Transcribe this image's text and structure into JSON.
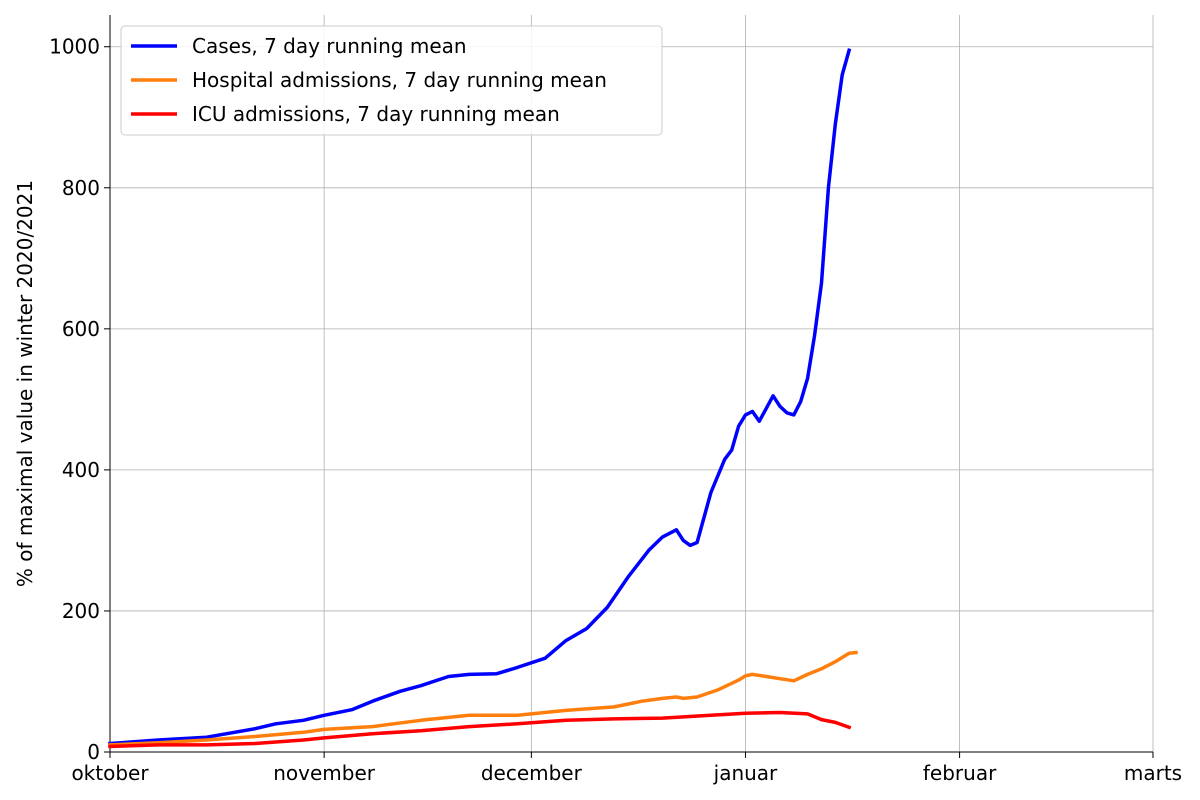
{
  "chart_data": {
    "type": "line",
    "title": "",
    "xlabel": "",
    "ylabel": "% of maximal value in winter 2020/2021",
    "x_unit": "date",
    "xlim": [
      "2021-10-01",
      "2022-03-01"
    ],
    "ylim": [
      0,
      1045
    ],
    "x_ticks": [
      {
        "date": "2021-10-01",
        "label": "oktober"
      },
      {
        "date": "2021-11-01",
        "label": "november"
      },
      {
        "date": "2021-12-01",
        "label": "december"
      },
      {
        "date": "2022-01-01",
        "label": "januar"
      },
      {
        "date": "2022-02-01",
        "label": "februar"
      },
      {
        "date": "2022-03-01",
        "label": "marts"
      }
    ],
    "y_ticks": [
      0,
      200,
      400,
      600,
      800,
      1000
    ],
    "grid": true,
    "legend": "top-left",
    "series": [
      {
        "name": "Cases, 7 day running mean",
        "color": "#0000ff",
        "points": [
          [
            "2021-10-01",
            12
          ],
          [
            "2021-10-08",
            17
          ],
          [
            "2021-10-15",
            21
          ],
          [
            "2021-10-22",
            33
          ],
          [
            "2021-10-25",
            40
          ],
          [
            "2021-10-29",
            45
          ],
          [
            "2021-11-01",
            52
          ],
          [
            "2021-11-05",
            60
          ],
          [
            "2021-11-08",
            72
          ],
          [
            "2021-11-12",
            86
          ],
          [
            "2021-11-15",
            94
          ],
          [
            "2021-11-19",
            107
          ],
          [
            "2021-11-22",
            110
          ],
          [
            "2021-11-26",
            111
          ],
          [
            "2021-11-29",
            120
          ],
          [
            "2021-12-03",
            133
          ],
          [
            "2021-12-06",
            158
          ],
          [
            "2021-12-09",
            175
          ],
          [
            "2021-12-12",
            205
          ],
          [
            "2021-12-15",
            248
          ],
          [
            "2021-12-18",
            286
          ],
          [
            "2021-12-20",
            305
          ],
          [
            "2021-12-22",
            315
          ],
          [
            "2021-12-23",
            300
          ],
          [
            "2021-12-24",
            293
          ],
          [
            "2021-12-25",
            297
          ],
          [
            "2021-12-27",
            368
          ],
          [
            "2021-12-29",
            415
          ],
          [
            "2021-12-30",
            428
          ],
          [
            "2021-12-31",
            462
          ],
          [
            "2022-01-01",
            478
          ],
          [
            "2022-01-02",
            483
          ],
          [
            "2022-01-03",
            469
          ],
          [
            "2022-01-05",
            505
          ],
          [
            "2022-01-06",
            490
          ],
          [
            "2022-01-07",
            481
          ],
          [
            "2022-01-08",
            478
          ],
          [
            "2022-01-09",
            497
          ],
          [
            "2022-01-10",
            530
          ],
          [
            "2022-01-11",
            590
          ],
          [
            "2022-01-12",
            665
          ],
          [
            "2022-01-13",
            800
          ],
          [
            "2022-01-14",
            890
          ],
          [
            "2022-01-15",
            960
          ],
          [
            "2022-01-16",
            995
          ]
        ]
      },
      {
        "name": "Hospital admissions, 7 day running mean",
        "color": "#ff7f0e",
        "points": [
          [
            "2021-10-01",
            10
          ],
          [
            "2021-10-08",
            13
          ],
          [
            "2021-10-15",
            17
          ],
          [
            "2021-10-22",
            22
          ],
          [
            "2021-10-29",
            28
          ],
          [
            "2021-11-01",
            32
          ],
          [
            "2021-11-08",
            36
          ],
          [
            "2021-11-15",
            45
          ],
          [
            "2021-11-22",
            52
          ],
          [
            "2021-11-29",
            52
          ],
          [
            "2021-12-06",
            59
          ],
          [
            "2021-12-13",
            64
          ],
          [
            "2021-12-17",
            72
          ],
          [
            "2021-12-20",
            76
          ],
          [
            "2021-12-22",
            78
          ],
          [
            "2021-12-23",
            76
          ],
          [
            "2021-12-25",
            78
          ],
          [
            "2021-12-28",
            88
          ],
          [
            "2021-12-31",
            102
          ],
          [
            "2022-01-01",
            108
          ],
          [
            "2022-01-02",
            110
          ],
          [
            "2022-01-04",
            107
          ],
          [
            "2022-01-06",
            104
          ],
          [
            "2022-01-08",
            101
          ],
          [
            "2022-01-10",
            110
          ],
          [
            "2022-01-12",
            118
          ],
          [
            "2022-01-14",
            128
          ],
          [
            "2022-01-16",
            140
          ],
          [
            "2022-01-17",
            141
          ]
        ]
      },
      {
        "name": "ICU admissions, 7 day running mean",
        "color": "#ff0000",
        "points": [
          [
            "2021-10-01",
            8
          ],
          [
            "2021-10-08",
            10
          ],
          [
            "2021-10-15",
            10
          ],
          [
            "2021-10-22",
            12
          ],
          [
            "2021-10-29",
            17
          ],
          [
            "2021-11-01",
            20
          ],
          [
            "2021-11-08",
            26
          ],
          [
            "2021-11-15",
            30
          ],
          [
            "2021-11-22",
            36
          ],
          [
            "2021-11-29",
            40
          ],
          [
            "2021-12-06",
            45
          ],
          [
            "2021-12-13",
            47
          ],
          [
            "2021-12-20",
            48
          ],
          [
            "2021-12-27",
            52
          ],
          [
            "2022-01-01",
            55
          ],
          [
            "2022-01-06",
            56
          ],
          [
            "2022-01-10",
            54
          ],
          [
            "2022-01-12",
            46
          ],
          [
            "2022-01-14",
            42
          ],
          [
            "2022-01-16",
            35
          ]
        ]
      }
    ]
  }
}
